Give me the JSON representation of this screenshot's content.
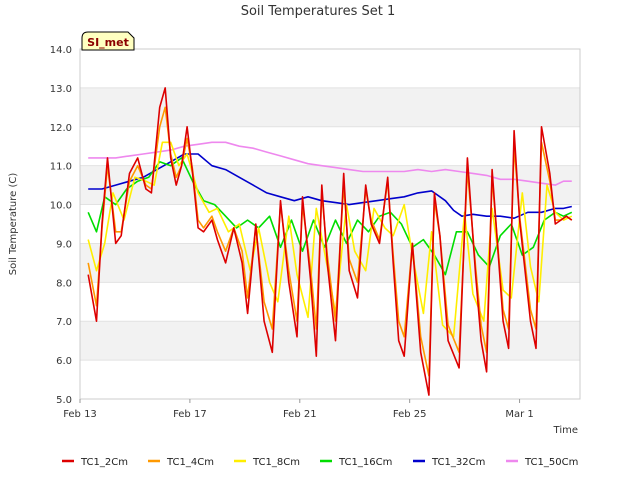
{
  "chart_data": {
    "type": "line",
    "title": "Soil Temperatures Set 1",
    "xlabel": "Time",
    "ylabel": "Soil Temperature (C)",
    "badge": "SI_met",
    "x_ticks": [
      "Feb 13",
      "Feb 17",
      "Feb 21",
      "Feb 25",
      "Mar 1"
    ],
    "y_ticks": [
      "5.0",
      "6.0",
      "7.0",
      "8.0",
      "9.0",
      "10.0",
      "11.0",
      "12.0",
      "13.0",
      "14.0"
    ],
    "ylim": [
      5.0,
      14.0
    ],
    "xlim_days": [
      0,
      18.2
    ],
    "x_unit": "days after Feb 13",
    "grid": "horizontal bands",
    "legend_position": "bottom",
    "series": [
      {
        "name": "TC1_2Cm",
        "color": "#dd0000",
        "x": [
          0.3,
          0.6,
          0.8,
          1.0,
          1.3,
          1.5,
          1.8,
          2.1,
          2.4,
          2.6,
          2.9,
          3.1,
          3.3,
          3.5,
          3.7,
          3.9,
          4.1,
          4.3,
          4.5,
          4.8,
          5.0,
          5.3,
          5.6,
          5.9,
          6.1,
          6.4,
          6.7,
          7.0,
          7.3,
          7.6,
          7.9,
          8.1,
          8.4,
          8.6,
          8.8,
          9.0,
          9.3,
          9.6,
          9.8,
          10.1,
          10.4,
          10.6,
          10.9,
          11.2,
          11.4,
          11.6,
          11.8,
          12.1,
          12.4,
          12.7,
          12.9,
          13.1,
          13.4,
          13.8,
          14.1,
          14.4,
          14.6,
          14.8,
          15.0,
          15.4,
          15.6,
          15.8,
          16.0,
          16.4,
          16.6,
          16.8,
          17.1,
          17.3,
          17.5,
          17.7,
          17.9
        ],
        "y": [
          8.2,
          7.0,
          9.5,
          11.2,
          9.0,
          9.2,
          10.8,
          11.2,
          10.4,
          10.3,
          12.5,
          13.0,
          11.2,
          10.5,
          11.0,
          12.0,
          10.8,
          9.4,
          9.3,
          9.6,
          9.1,
          8.5,
          9.4,
          8.5,
          7.2,
          9.5,
          7.0,
          6.2,
          10.1,
          8.0,
          6.6,
          10.2,
          8.0,
          6.1,
          10.5,
          8.5,
          6.5,
          10.8,
          8.3,
          7.6,
          10.5,
          9.5,
          9.0,
          10.7,
          8.5,
          6.5,
          6.1,
          9.0,
          6.2,
          5.1,
          10.3,
          9.2,
          6.5,
          5.8,
          11.2,
          8.2,
          6.5,
          5.7,
          10.9,
          7.0,
          6.3,
          11.9,
          9.6,
          7.0,
          6.3,
          12.0,
          10.8,
          9.5,
          9.6,
          9.7,
          9.6
        ]
      },
      {
        "name": "TC1_4Cm",
        "color": "#ff9900",
        "x": [
          0.3,
          0.6,
          0.8,
          1.0,
          1.3,
          1.5,
          1.8,
          2.1,
          2.4,
          2.6,
          2.9,
          3.1,
          3.3,
          3.5,
          3.7,
          3.9,
          4.1,
          4.3,
          4.5,
          4.8,
          5.0,
          5.3,
          5.6,
          5.9,
          6.1,
          6.4,
          6.7,
          7.0,
          7.3,
          7.6,
          7.9,
          8.1,
          8.4,
          8.6,
          8.8,
          9.0,
          9.3,
          9.6,
          9.8,
          10.1,
          10.4,
          10.6,
          10.9,
          11.2,
          11.4,
          11.6,
          11.8,
          12.1,
          12.4,
          12.7,
          12.9,
          13.1,
          13.4,
          13.8,
          14.1,
          14.4,
          14.6,
          14.8,
          15.0,
          15.4,
          15.6,
          15.8,
          16.0,
          16.4,
          16.6,
          16.8,
          17.1,
          17.3,
          17.5,
          17.7,
          17.9
        ],
        "y": [
          8.5,
          7.4,
          9.4,
          11.0,
          9.3,
          9.3,
          10.6,
          11.0,
          10.5,
          10.4,
          12.0,
          12.5,
          11.3,
          10.7,
          11.0,
          11.7,
          10.9,
          9.6,
          9.4,
          9.7,
          9.3,
          8.8,
          9.4,
          8.8,
          7.6,
          9.4,
          7.5,
          6.8,
          10.0,
          8.3,
          7.0,
          10.0,
          8.3,
          6.8,
          10.3,
          8.7,
          7.0,
          10.5,
          8.6,
          8.0,
          10.4,
          9.6,
          9.1,
          10.6,
          8.7,
          7.0,
          6.6,
          9.0,
          6.6,
          5.6,
          10.1,
          9.2,
          6.9,
          6.2,
          10.9,
          8.4,
          6.9,
          6.2,
          10.7,
          7.3,
          6.8,
          11.5,
          9.7,
          7.3,
          6.8,
          11.6,
          10.6,
          9.6,
          9.6,
          9.7,
          9.6
        ]
      },
      {
        "name": "TC1_8Cm",
        "color": "#ffee00",
        "x": [
          0.3,
          0.6,
          0.9,
          1.2,
          1.6,
          2.0,
          2.4,
          2.7,
          3.0,
          3.3,
          3.6,
          3.9,
          4.3,
          4.7,
          5.0,
          5.4,
          5.8,
          6.2,
          6.5,
          6.9,
          7.2,
          7.6,
          7.9,
          8.3,
          8.6,
          9.0,
          9.3,
          9.7,
          10.0,
          10.4,
          10.7,
          11.1,
          11.4,
          11.8,
          12.1,
          12.5,
          12.8,
          13.2,
          13.6,
          14.0,
          14.3,
          14.7,
          15.0,
          15.4,
          15.7,
          16.1,
          16.4,
          16.7,
          17.0,
          17.3,
          17.6,
          17.9
        ],
        "y": [
          9.1,
          8.3,
          9.0,
          10.3,
          9.6,
          10.7,
          10.6,
          10.5,
          11.6,
          11.6,
          11.0,
          11.3,
          10.3,
          9.8,
          9.9,
          9.3,
          9.5,
          8.3,
          9.4,
          8.0,
          7.5,
          9.7,
          8.2,
          7.1,
          9.9,
          8.4,
          7.2,
          10.0,
          8.8,
          8.3,
          9.9,
          9.4,
          9.2,
          10.0,
          8.7,
          7.2,
          9.3,
          6.9,
          6.6,
          9.8,
          7.7,
          7.0,
          9.9,
          7.8,
          7.6,
          10.3,
          8.4,
          7.5,
          10.5,
          9.8,
          9.6,
          9.7
        ]
      },
      {
        "name": "TC1_16Cm",
        "color": "#00dd00",
        "x": [
          0.3,
          0.6,
          0.9,
          1.3,
          1.7,
          2.1,
          2.5,
          2.9,
          3.3,
          3.7,
          4.1,
          4.5,
          4.9,
          5.3,
          5.7,
          6.1,
          6.5,
          6.9,
          7.3,
          7.7,
          8.1,
          8.5,
          8.9,
          9.3,
          9.7,
          10.1,
          10.5,
          10.9,
          11.3,
          11.7,
          12.1,
          12.5,
          12.9,
          13.3,
          13.7,
          14.1,
          14.5,
          14.9,
          15.3,
          15.7,
          16.1,
          16.5,
          16.9,
          17.3,
          17.6,
          17.9
        ],
        "y": [
          9.8,
          9.3,
          10.2,
          10.0,
          10.4,
          10.6,
          10.7,
          11.1,
          11.0,
          11.2,
          10.6,
          10.1,
          10.0,
          9.7,
          9.4,
          9.6,
          9.4,
          9.7,
          8.9,
          9.6,
          8.8,
          9.6,
          8.9,
          9.6,
          9.0,
          9.6,
          9.3,
          9.7,
          9.8,
          9.5,
          8.9,
          9.1,
          8.7,
          8.2,
          9.3,
          9.3,
          8.7,
          8.4,
          9.2,
          9.5,
          8.7,
          8.9,
          9.6,
          9.8,
          9.7,
          9.8
        ]
      },
      {
        "name": "TC1_32Cm",
        "color": "#0000cc",
        "x": [
          0.3,
          0.8,
          1.3,
          1.8,
          2.3,
          2.8,
          3.3,
          3.8,
          4.3,
          4.8,
          5.3,
          5.8,
          6.3,
          6.8,
          7.3,
          7.8,
          8.3,
          8.8,
          9.3,
          9.8,
          10.3,
          10.8,
          11.3,
          11.8,
          12.3,
          12.8,
          13.3,
          13.6,
          13.9,
          14.3,
          14.8,
          15.3,
          15.8,
          16.3,
          16.8,
          17.3,
          17.6,
          17.9
        ],
        "y": [
          10.4,
          10.4,
          10.5,
          10.6,
          10.7,
          10.9,
          11.1,
          11.3,
          11.3,
          11.0,
          10.9,
          10.7,
          10.5,
          10.3,
          10.2,
          10.1,
          10.2,
          10.1,
          10.05,
          10.0,
          10.05,
          10.1,
          10.15,
          10.2,
          10.3,
          10.35,
          10.1,
          9.85,
          9.7,
          9.75,
          9.7,
          9.7,
          9.65,
          9.8,
          9.8,
          9.9,
          9.9,
          9.95
        ]
      },
      {
        "name": "TC1_50Cm",
        "color": "#ee88ee",
        "x": [
          0.3,
          0.8,
          1.3,
          1.8,
          2.3,
          2.8,
          3.3,
          3.8,
          4.3,
          4.8,
          5.3,
          5.8,
          6.3,
          6.8,
          7.3,
          7.8,
          8.3,
          8.8,
          9.3,
          9.8,
          10.3,
          10.8,
          11.3,
          11.8,
          12.3,
          12.8,
          13.3,
          13.8,
          14.3,
          14.8,
          15.3,
          15.8,
          16.3,
          16.8,
          17.3,
          17.6,
          17.9
        ],
        "y": [
          11.2,
          11.2,
          11.2,
          11.25,
          11.3,
          11.35,
          11.4,
          11.5,
          11.55,
          11.6,
          11.6,
          11.5,
          11.45,
          11.35,
          11.25,
          11.15,
          11.05,
          11.0,
          10.95,
          10.9,
          10.85,
          10.85,
          10.85,
          10.85,
          10.9,
          10.85,
          10.9,
          10.85,
          10.8,
          10.75,
          10.65,
          10.65,
          10.6,
          10.55,
          10.5,
          10.6,
          10.6
        ]
      }
    ]
  }
}
